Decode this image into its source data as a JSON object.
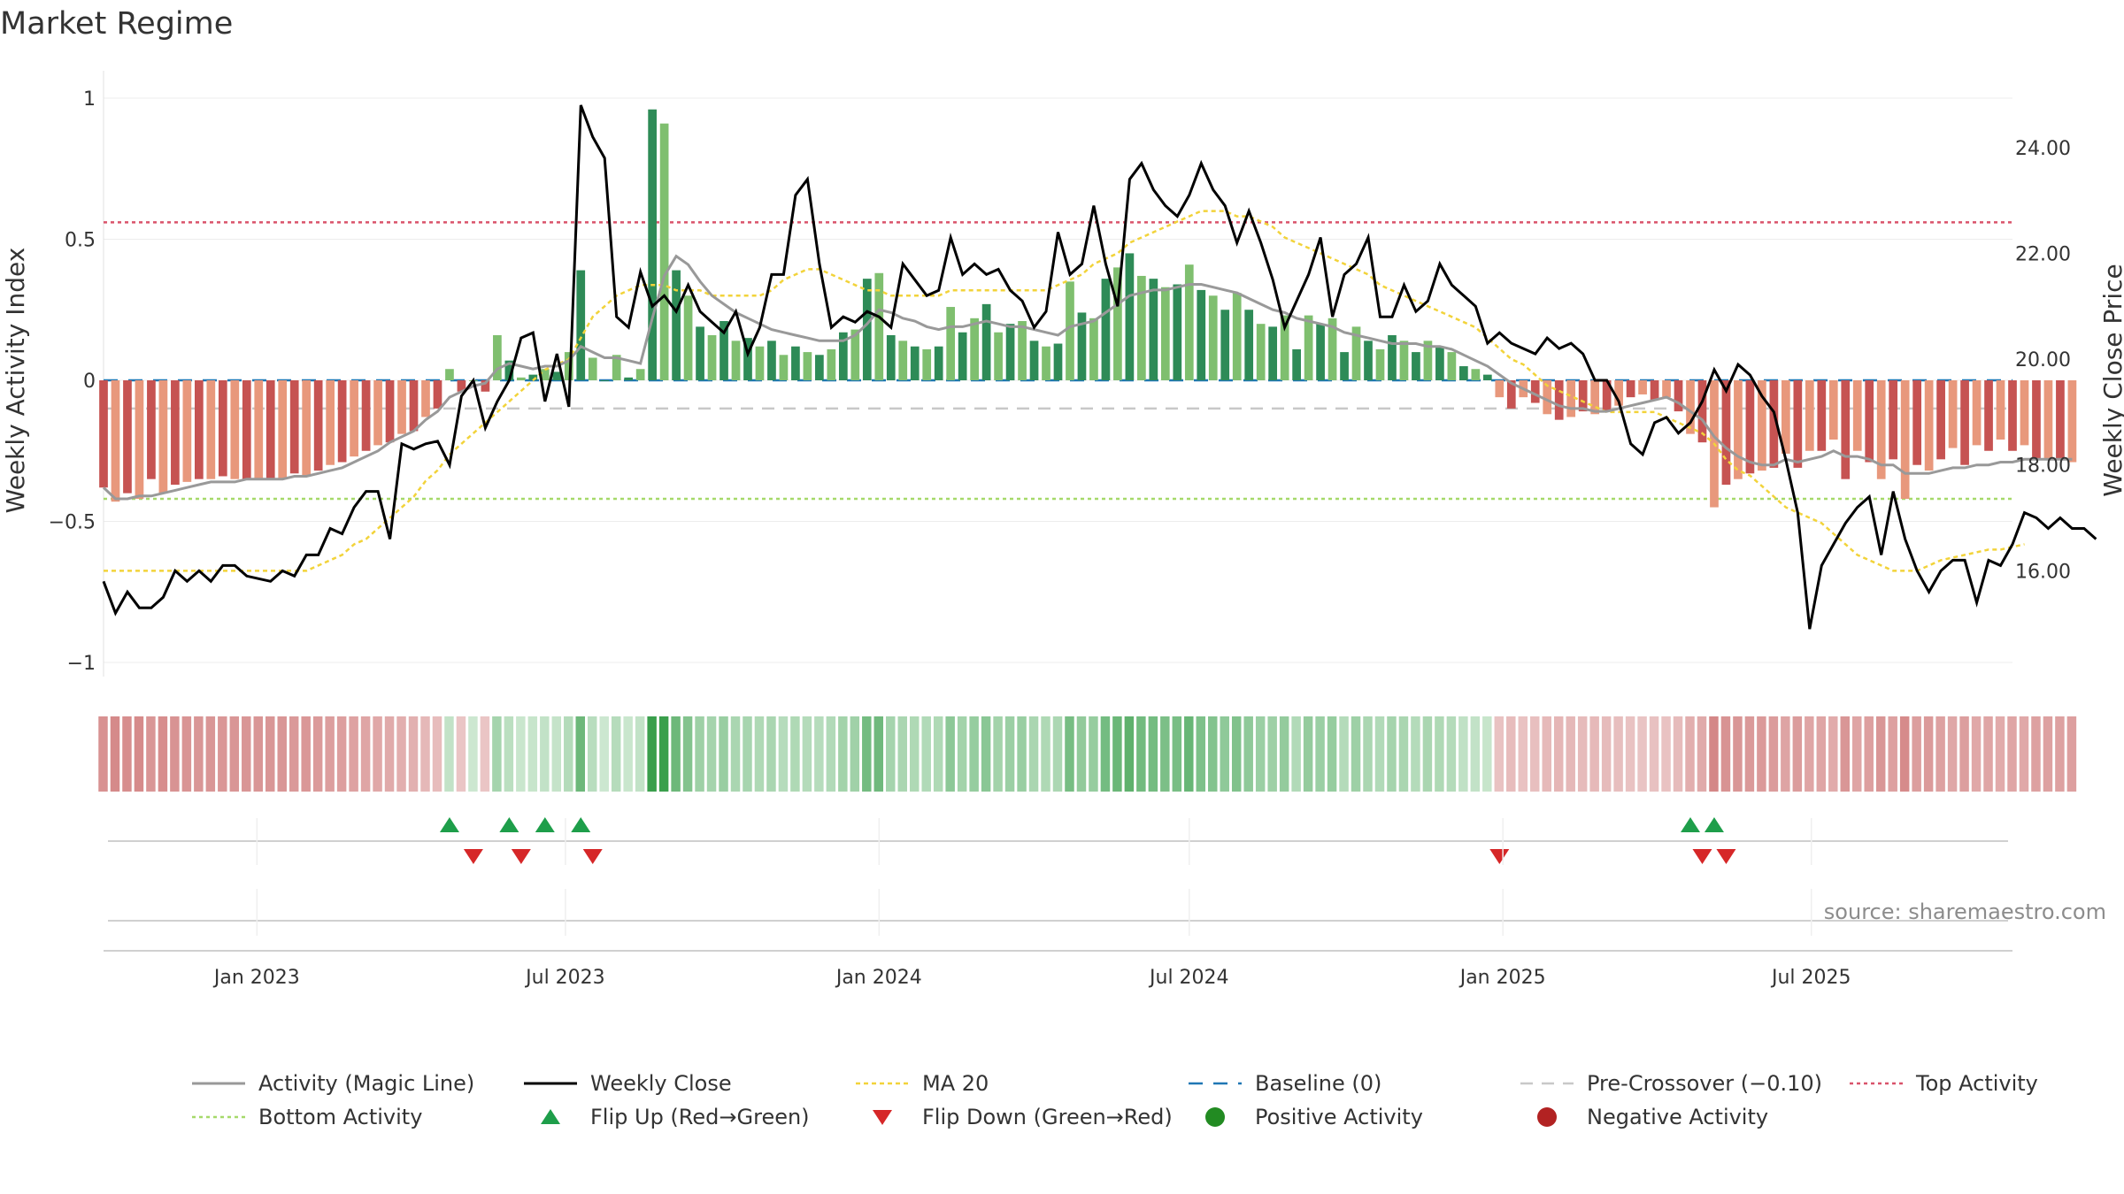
{
  "chart_data": {
    "type": "bar",
    "title": "Market Regime",
    "ylabel": "Weekly Activity Index",
    "y2label": "Weekly Close Price",
    "ylim": [
      -1.05,
      1.05
    ],
    "y2lim": [
      14.0,
      25.2
    ],
    "y_ticks": [
      {
        "value": 1,
        "label": "1"
      },
      {
        "value": 0.5,
        "label": "0.5"
      },
      {
        "value": 0,
        "label": "0"
      },
      {
        "value": -0.5,
        "label": "−0.5"
      },
      {
        "value": -1,
        "label": "−1"
      }
    ],
    "y2_ticks": [
      {
        "value": 24,
        "label": "24.00"
      },
      {
        "value": 22,
        "label": "22.00"
      },
      {
        "value": 20,
        "label": "20.00"
      },
      {
        "value": 18,
        "label": "18.00"
      },
      {
        "value": 16,
        "label": "16.00"
      }
    ],
    "x_start": "2022-10-03",
    "x_end": "2025-10-27",
    "x_ticks": [
      {
        "date": "2023-01-01",
        "label": "Jan 2023"
      },
      {
        "date": "2023-07-01",
        "label": "Jul 2023"
      },
      {
        "date": "2024-01-01",
        "label": "Jan 2024"
      },
      {
        "date": "2024-07-01",
        "label": "Jul 2024"
      },
      {
        "date": "2025-01-01",
        "label": "Jan 2025"
      },
      {
        "date": "2025-07-01",
        "label": "Jul 2025"
      }
    ],
    "reference_lines": {
      "baseline": 0,
      "pre_crossover": -0.1,
      "top_activity": 0.56,
      "bottom_activity": -0.42
    },
    "week_interval_days": 7,
    "activity": [
      -0.38,
      -0.43,
      -0.4,
      -0.42,
      -0.35,
      -0.4,
      -0.37,
      -0.36,
      -0.35,
      -0.35,
      -0.34,
      -0.35,
      -0.35,
      -0.35,
      -0.35,
      -0.35,
      -0.33,
      -0.34,
      -0.32,
      -0.3,
      -0.29,
      -0.27,
      -0.25,
      -0.23,
      -0.22,
      -0.19,
      -0.18,
      -0.13,
      -0.1,
      0.04,
      -0.04,
      0.0,
      -0.04,
      0.16,
      0.07,
      0.01,
      0.02,
      0.04,
      0.03,
      0.1,
      0.39,
      0.08,
      0.0,
      0.09,
      0.01,
      0.04,
      0.96,
      0.91,
      0.39,
      0.3,
      0.19,
      0.16,
      0.21,
      0.14,
      0.15,
      0.12,
      0.14,
      0.09,
      0.12,
      0.1,
      0.09,
      0.11,
      0.17,
      0.18,
      0.36,
      0.38,
      0.16,
      0.14,
      0.12,
      0.11,
      0.12,
      0.26,
      0.17,
      0.22,
      0.27,
      0.17,
      0.2,
      0.21,
      0.14,
      0.12,
      0.13,
      0.35,
      0.24,
      0.22,
      0.36,
      0.4,
      0.45,
      0.37,
      0.36,
      0.33,
      0.34,
      0.41,
      0.32,
      0.3,
      0.25,
      0.31,
      0.25,
      0.2,
      0.19,
      0.23,
      0.11,
      0.23,
      0.2,
      0.22,
      0.1,
      0.19,
      0.14,
      0.11,
      0.16,
      0.14,
      0.1,
      0.14,
      0.12,
      0.1,
      0.05,
      0.04,
      0.02,
      -0.06,
      -0.1,
      -0.06,
      -0.08,
      -0.12,
      -0.14,
      -0.13,
      -0.11,
      -0.12,
      -0.11,
      -0.09,
      -0.06,
      -0.05,
      -0.07,
      -0.06,
      -0.11,
      -0.19,
      -0.22,
      -0.45,
      -0.37,
      -0.35,
      -0.33,
      -0.32,
      -0.31,
      -0.26,
      -0.31,
      -0.25,
      -0.25,
      -0.21,
      -0.35,
      -0.25,
      -0.29,
      -0.35,
      -0.28,
      -0.42,
      -0.3,
      -0.32,
      -0.28,
      -0.24,
      -0.3,
      -0.23,
      -0.25,
      -0.21,
      -0.25,
      -0.23,
      -0.28,
      -0.28,
      -0.28,
      -0.29
    ],
    "magic_line": [
      -0.38,
      -0.42,
      -0.42,
      -0.41,
      -0.41,
      -0.4,
      -0.39,
      -0.38,
      -0.37,
      -0.36,
      -0.36,
      -0.36,
      -0.35,
      -0.35,
      -0.35,
      -0.35,
      -0.34,
      -0.34,
      -0.33,
      -0.32,
      -0.31,
      -0.29,
      -0.27,
      -0.25,
      -0.22,
      -0.2,
      -0.18,
      -0.14,
      -0.11,
      -0.06,
      -0.04,
      -0.02,
      -0.01,
      0.04,
      0.06,
      0.05,
      0.04,
      0.05,
      0.05,
      0.07,
      0.12,
      0.1,
      0.08,
      0.08,
      0.07,
      0.06,
      0.22,
      0.37,
      0.44,
      0.41,
      0.35,
      0.3,
      0.27,
      0.24,
      0.22,
      0.2,
      0.18,
      0.17,
      0.16,
      0.15,
      0.14,
      0.14,
      0.14,
      0.16,
      0.2,
      0.25,
      0.24,
      0.22,
      0.21,
      0.19,
      0.18,
      0.19,
      0.19,
      0.2,
      0.21,
      0.2,
      0.19,
      0.19,
      0.18,
      0.17,
      0.16,
      0.19,
      0.2,
      0.21,
      0.24,
      0.27,
      0.3,
      0.31,
      0.32,
      0.32,
      0.33,
      0.34,
      0.34,
      0.33,
      0.32,
      0.31,
      0.29,
      0.27,
      0.25,
      0.24,
      0.22,
      0.21,
      0.2,
      0.19,
      0.17,
      0.16,
      0.15,
      0.14,
      0.13,
      0.13,
      0.13,
      0.12,
      0.12,
      0.11,
      0.09,
      0.07,
      0.05,
      0.02,
      -0.01,
      -0.03,
      -0.05,
      -0.07,
      -0.09,
      -0.1,
      -0.1,
      -0.11,
      -0.11,
      -0.1,
      -0.09,
      -0.08,
      -0.07,
      -0.06,
      -0.08,
      -0.11,
      -0.14,
      -0.2,
      -0.24,
      -0.27,
      -0.29,
      -0.3,
      -0.3,
      -0.28,
      -0.29,
      -0.28,
      -0.27,
      -0.25,
      -0.27,
      -0.27,
      -0.28,
      -0.3,
      -0.3,
      -0.33,
      -0.33,
      -0.33,
      -0.32,
      -0.31,
      -0.31,
      -0.3,
      -0.3,
      -0.29,
      -0.29,
      -0.28,
      -0.28,
      -0.28,
      -0.28,
      -0.28
    ],
    "close": [
      15.8,
      15.2,
      15.6,
      15.3,
      15.3,
      15.5,
      16.0,
      15.8,
      16.0,
      15.8,
      16.1,
      16.1,
      15.9,
      15.85,
      15.8,
      16.0,
      15.9,
      16.3,
      16.3,
      16.8,
      16.7,
      17.2,
      17.5,
      17.5,
      16.6,
      18.4,
      18.3,
      18.4,
      18.45,
      18.0,
      19.3,
      19.6,
      18.7,
      19.2,
      19.6,
      20.4,
      20.5,
      19.2,
      20.1,
      19.1,
      24.8,
      24.2,
      23.8,
      20.8,
      20.6,
      21.65,
      21.0,
      21.2,
      20.9,
      21.4,
      20.9,
      20.7,
      20.5,
      20.9,
      20.1,
      20.6,
      21.6,
      21.6,
      23.1,
      23.4,
      21.8,
      20.6,
      20.8,
      20.7,
      20.9,
      20.8,
      20.6,
      21.8,
      21.5,
      21.2,
      21.3,
      22.3,
      21.6,
      21.8,
      21.6,
      21.7,
      21.3,
      21.1,
      20.6,
      20.9,
      22.4,
      21.6,
      21.8,
      22.9,
      21.8,
      21.0,
      23.4,
      23.7,
      23.2,
      22.9,
      22.7,
      23.1,
      23.7,
      23.2,
      22.9,
      22.2,
      22.8,
      22.2,
      21.5,
      20.6,
      21.1,
      21.6,
      22.3,
      20.8,
      21.6,
      21.8,
      22.3,
      20.8,
      20.8,
      21.4,
      20.9,
      21.1,
      21.8,
      21.4,
      21.2,
      21.0,
      20.3,
      20.5,
      20.3,
      20.2,
      20.1,
      20.4,
      20.2,
      20.3,
      20.1,
      19.6,
      19.6,
      19.2,
      18.4,
      18.2,
      18.8,
      18.9,
      18.6,
      18.8,
      19.2,
      19.8,
      19.4,
      19.9,
      19.7,
      19.3,
      19.0,
      18.1,
      17.1,
      14.9,
      16.1,
      16.5,
      16.9,
      17.2,
      17.4,
      16.3,
      17.5,
      16.6,
      16.0,
      15.6,
      16.0,
      16.2,
      16.2,
      15.4,
      16.2,
      16.1,
      16.5,
      17.1,
      17.0,
      16.8,
      17.0,
      16.8,
      16.8,
      16.6
    ],
    "ma20": [
      16.0,
      16.0,
      16.0,
      16.0,
      16.0,
      16.0,
      16.0,
      16.0,
      16.0,
      16.0,
      16.0,
      16.0,
      16.0,
      16.0,
      16.0,
      16.0,
      16.0,
      16.0,
      16.1,
      16.2,
      16.3,
      16.5,
      16.6,
      16.8,
      17.0,
      17.2,
      17.4,
      17.7,
      17.9,
      18.2,
      18.4,
      18.6,
      18.8,
      19.0,
      19.2,
      19.4,
      19.6,
      19.8,
      19.9,
      20.0,
      20.4,
      20.8,
      21.0,
      21.2,
      21.3,
      21.4,
      21.4,
      21.4,
      21.3,
      21.3,
      21.3,
      21.2,
      21.2,
      21.2,
      21.2,
      21.2,
      21.3,
      21.5,
      21.6,
      21.7,
      21.7,
      21.6,
      21.5,
      21.4,
      21.3,
      21.3,
      21.2,
      21.2,
      21.2,
      21.2,
      21.2,
      21.3,
      21.3,
      21.3,
      21.3,
      21.3,
      21.3,
      21.3,
      21.3,
      21.3,
      21.4,
      21.5,
      21.6,
      21.8,
      21.9,
      22.0,
      22.2,
      22.3,
      22.4,
      22.5,
      22.6,
      22.7,
      22.8,
      22.8,
      22.8,
      22.7,
      22.7,
      22.6,
      22.5,
      22.3,
      22.2,
      22.1,
      22.0,
      21.9,
      21.8,
      21.7,
      21.6,
      21.4,
      21.3,
      21.2,
      21.1,
      21.0,
      20.9,
      20.8,
      20.7,
      20.6,
      20.4,
      20.2,
      20.0,
      19.9,
      19.7,
      19.5,
      19.4,
      19.3,
      19.2,
      19.1,
      19.0,
      19.0,
      19.0,
      19.0,
      19.0,
      18.9,
      18.8,
      18.7,
      18.6,
      18.4,
      18.1,
      17.9,
      17.8,
      17.6,
      17.4,
      17.2,
      17.1,
      17.0,
      16.9,
      16.7,
      16.5,
      16.3,
      16.2,
      16.1,
      16.0,
      16.0,
      16.0,
      16.1,
      16.2,
      16.25,
      16.3,
      16.35,
      16.4,
      16.4,
      16.45,
      16.5
    ],
    "flip_up_weeks": [
      29,
      34,
      37,
      40,
      133,
      135
    ],
    "flip_down_weeks": [
      31,
      35,
      41,
      117,
      134,
      136
    ],
    "series": [
      {
        "name": "Activity (Magic Line)"
      },
      {
        "name": "Weekly Close"
      },
      {
        "name": "MA 20"
      },
      {
        "name": "Baseline (0)"
      },
      {
        "name": "Pre-Crossover (−0.10)"
      },
      {
        "name": "Top Activity"
      },
      {
        "name": "Bottom Activity"
      },
      {
        "name": "Flip Up (Red→Green)"
      },
      {
        "name": "Flip Down (Green→Red)"
      },
      {
        "name": "Positive Activity"
      },
      {
        "name": "Negative Activity"
      }
    ],
    "source": "source: sharemaestro.com"
  },
  "colors": {
    "magic_line": "#999999",
    "close": "#000000",
    "ma20": "#f2d33a",
    "baseline": "#1f77b4",
    "pre_crossover": "#c8c8c8",
    "top_activity": "#d9536b",
    "bottom_activity": "#a6d96a",
    "flip_up": "#1e9e4a",
    "flip_down": "#d62728",
    "positive": "#228b22",
    "negative": "#b22222",
    "pos_dark": "#2e8b57",
    "pos_light": "#7fbf6f",
    "neg_dark": "#c65352",
    "neg_light": "#e8987c"
  }
}
